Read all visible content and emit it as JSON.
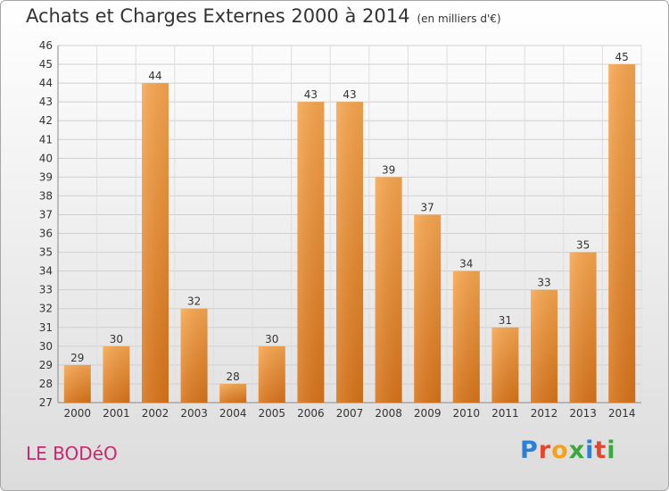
{
  "title": "Achats et Charges Externes 2000 à 2014",
  "subtitle": "(en milliers d'€)",
  "commune": "LE BODéO",
  "logo": "Proxiti",
  "colors": {
    "bar": "#f0932e",
    "bar_dark": "#d8741a",
    "commune": "#c8286e"
  },
  "chart_data": {
    "type": "bar",
    "categories": [
      "2000",
      "2001",
      "2002",
      "2003",
      "2004",
      "2005",
      "2006",
      "2007",
      "2008",
      "2009",
      "2010",
      "2011",
      "2012",
      "2013",
      "2014"
    ],
    "values": [
      29,
      30,
      44,
      32,
      28,
      30,
      43,
      43,
      39,
      37,
      34,
      31,
      33,
      35,
      45
    ],
    "title": "Achats et Charges Externes 2000 à 2014",
    "subtitle": "(en milliers d'€)",
    "ylim": [
      27,
      46
    ],
    "yticks": [
      27,
      28,
      29,
      30,
      31,
      32,
      33,
      34,
      35,
      36,
      37,
      38,
      39,
      40,
      41,
      42,
      43,
      44,
      45,
      46
    ],
    "grid": true,
    "data_labels": true
  }
}
